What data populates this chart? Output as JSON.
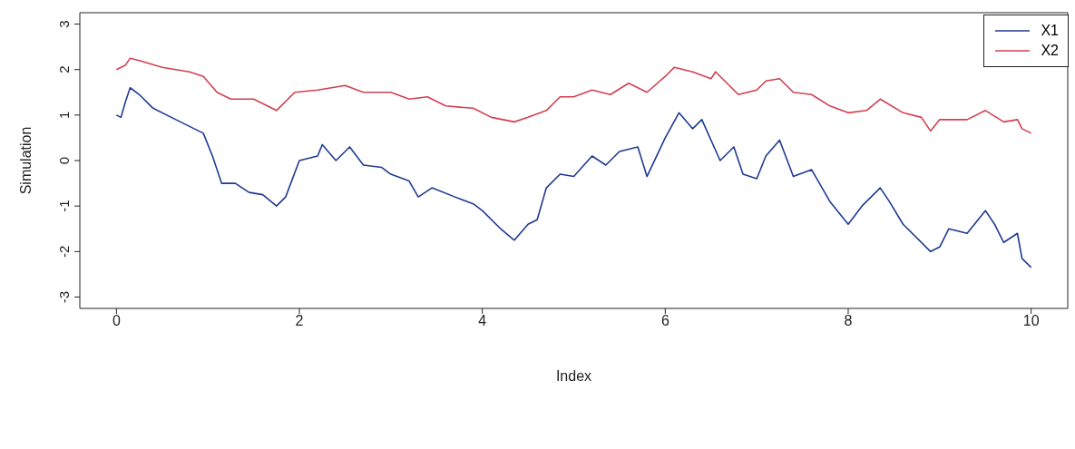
{
  "chart_data": {
    "type": "line",
    "xlabel": "Index",
    "ylabel": "Simulation",
    "xlim": [
      -0.4,
      10.4
    ],
    "ylim": [
      -3.25,
      3.25
    ],
    "xticks": [
      0,
      2,
      4,
      6,
      8,
      10
    ],
    "yticks": [
      -3,
      -2,
      -1,
      0,
      1,
      2,
      3
    ],
    "grid": false,
    "legend": "top right",
    "marker": "none",
    "line_style": "solid",
    "series": [
      {
        "name": "X1",
        "color": "#1f3a93",
        "x": [
          0,
          0.05,
          0.1,
          0.15,
          0.25,
          0.4,
          0.6,
          0.8,
          0.95,
          1.05,
          1.15,
          1.3,
          1.45,
          1.6,
          1.75,
          1.85,
          2.0,
          2.2,
          2.25,
          2.4,
          2.55,
          2.7,
          2.9,
          3.0,
          3.2,
          3.3,
          3.45,
          3.7,
          3.9,
          4.0,
          4.2,
          4.35,
          4.5,
          4.6,
          4.7,
          4.85,
          5.0,
          5.2,
          5.35,
          5.5,
          5.7,
          5.8,
          6.0,
          6.15,
          6.3,
          6.4,
          6.6,
          6.75,
          6.85,
          7.0,
          7.1,
          7.25,
          7.4,
          7.6,
          7.8,
          8.0,
          8.15,
          8.35,
          8.45,
          8.6,
          8.9,
          9.0,
          9.1,
          9.3,
          9.5,
          9.6,
          9.7,
          9.85,
          9.9,
          10.0
        ],
        "values": [
          1.0,
          0.95,
          1.3,
          1.6,
          1.45,
          1.15,
          0.95,
          0.75,
          0.6,
          0.1,
          -0.5,
          -0.5,
          -0.7,
          -0.75,
          -1.0,
          -0.8,
          0.0,
          0.1,
          0.35,
          0.0,
          0.3,
          -0.1,
          -0.15,
          -0.3,
          -0.45,
          -0.8,
          -0.6,
          -0.8,
          -0.95,
          -1.1,
          -1.5,
          -1.75,
          -1.4,
          -1.3,
          -0.6,
          -0.3,
          -0.35,
          0.1,
          -0.1,
          0.2,
          0.3,
          -0.35,
          0.5,
          1.05,
          0.7,
          0.9,
          0.0,
          0.3,
          -0.3,
          -0.4,
          0.1,
          0.45,
          -0.35,
          -0.2,
          -0.9,
          -1.4,
          -1.0,
          -0.6,
          -0.9,
          -1.4,
          -2.0,
          -1.9,
          -1.5,
          -1.6,
          -1.1,
          -1.4,
          -1.8,
          -1.6,
          -2.15,
          -2.35
        ]
      },
      {
        "name": "X2",
        "color": "#d2404f",
        "x": [
          0,
          0.1,
          0.15,
          0.25,
          0.5,
          0.8,
          0.95,
          1.1,
          1.25,
          1.5,
          1.75,
          1.95,
          2.2,
          2.5,
          2.7,
          3.0,
          3.2,
          3.4,
          3.6,
          3.9,
          4.1,
          4.35,
          4.5,
          4.7,
          4.85,
          5.0,
          5.2,
          5.4,
          5.6,
          5.8,
          6.0,
          6.1,
          6.3,
          6.5,
          6.55,
          6.8,
          7.0,
          7.1,
          7.25,
          7.4,
          7.6,
          7.8,
          8.0,
          8.2,
          8.35,
          8.6,
          8.8,
          8.9,
          9.0,
          9.3,
          9.5,
          9.7,
          9.85,
          9.9,
          10.0
        ],
        "values": [
          2.0,
          2.1,
          2.25,
          2.2,
          2.05,
          1.95,
          1.85,
          1.5,
          1.35,
          1.35,
          1.1,
          1.5,
          1.55,
          1.65,
          1.5,
          1.5,
          1.35,
          1.4,
          1.2,
          1.15,
          0.95,
          0.85,
          0.95,
          1.1,
          1.4,
          1.4,
          1.55,
          1.45,
          1.7,
          1.5,
          1.85,
          2.05,
          1.95,
          1.8,
          1.95,
          1.45,
          1.55,
          1.75,
          1.8,
          1.5,
          1.45,
          1.2,
          1.05,
          1.1,
          1.35,
          1.05,
          0.95,
          0.65,
          0.9,
          0.9,
          1.1,
          0.85,
          0.9,
          0.7,
          0.6
        ]
      }
    ]
  }
}
